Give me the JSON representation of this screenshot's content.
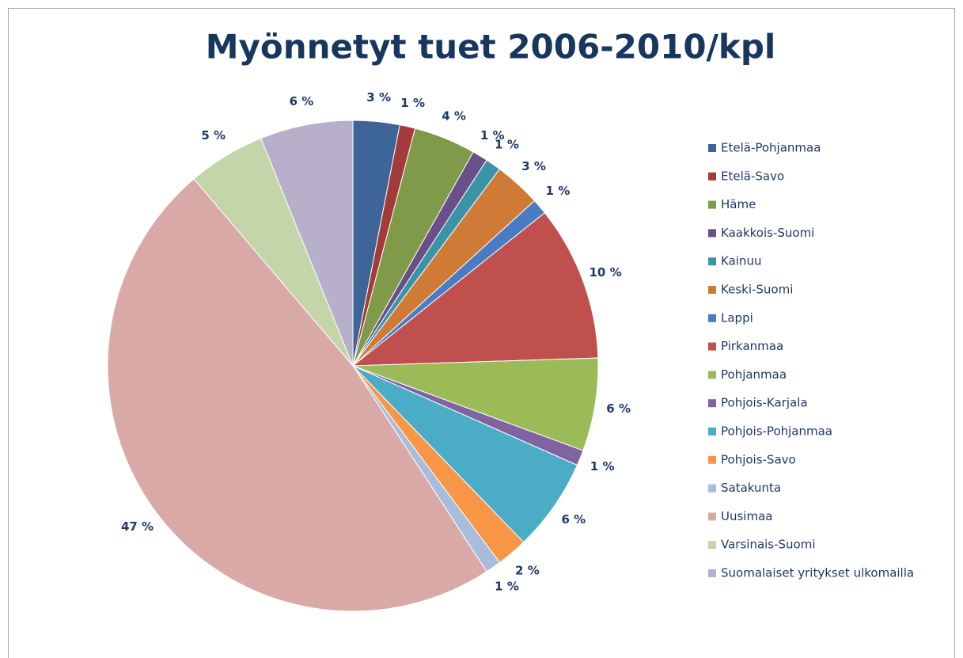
{
  "chart_data": {
    "type": "pie",
    "title": "Myönnetyt tuet 2006-2010/kpl",
    "categories": [
      "Etelä-Pohjanmaa",
      "Etelä-Savo",
      "Häme",
      "Kaakkois-Suomi",
      "Kainuu",
      "Keski-Suomi",
      "Lappi",
      "Pirkanmaa",
      "Pohjanmaa",
      "Pohjois-Karjala",
      "Pohjois-Pohjanmaa",
      "Pohjois-Savo",
      "Satakunta",
      "Uusimaa",
      "Varsinais-Suomi",
      "Suomalaiset yritykset ulkomailla"
    ],
    "values": [
      3,
      1,
      4,
      1,
      1,
      3,
      1,
      10,
      6,
      1,
      6,
      2,
      1,
      47,
      5,
      6
    ],
    "value_labels": [
      "3 %",
      "1 %",
      "4 %",
      "1 %",
      "1 %",
      "3 %",
      "1 %",
      "10 %",
      "6 %",
      "1 %",
      "6 %",
      "2 %",
      "1 %",
      "47 %",
      "5 %",
      "6 %"
    ],
    "colors": [
      "#3d6597",
      "#a33b3a",
      "#7f9a48",
      "#6a5088",
      "#3a93a7",
      "#cf7a37",
      "#4a7cc4",
      "#c0504d",
      "#9bbb59",
      "#8064a2",
      "#4bacc6",
      "#f79646",
      "#a8bcdc",
      "#d9a9a8",
      "#c4d6a9",
      "#b8afca"
    ],
    "legend": "right"
  }
}
